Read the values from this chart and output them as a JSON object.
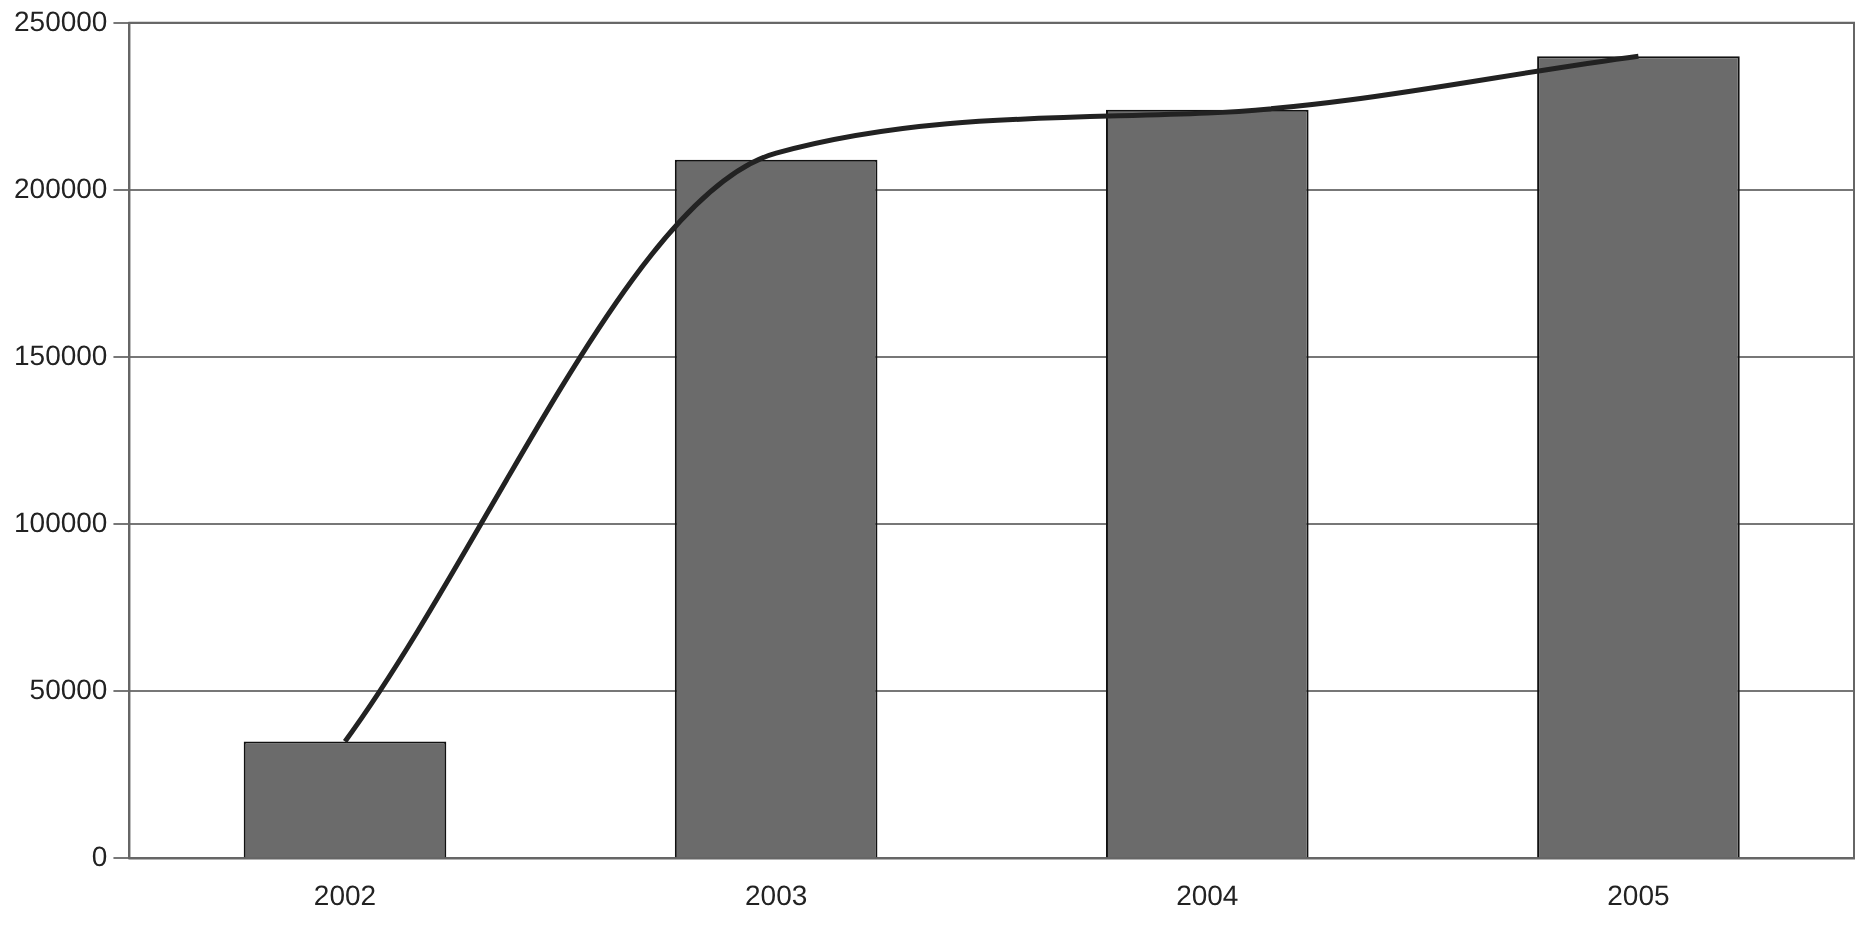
{
  "chart_data": {
    "type": "bar",
    "categories": [
      "2002",
      "2003",
      "2004",
      "2005"
    ],
    "series": [
      {
        "color": "#6b6b6b",
        "values": [
          35000,
          209000,
          224000,
          240000
        ]
      },
      {
        "type": "line",
        "color": "#222222",
        "values": [
          35000,
          211000,
          223000,
          240000
        ]
      }
    ],
    "ylim": [
      0,
      250000
    ],
    "yticks": [
      0,
      50000,
      100000,
      150000,
      200000,
      250000
    ],
    "grid": "y",
    "legend": false,
    "marker": "none",
    "line_style": "solid"
  }
}
